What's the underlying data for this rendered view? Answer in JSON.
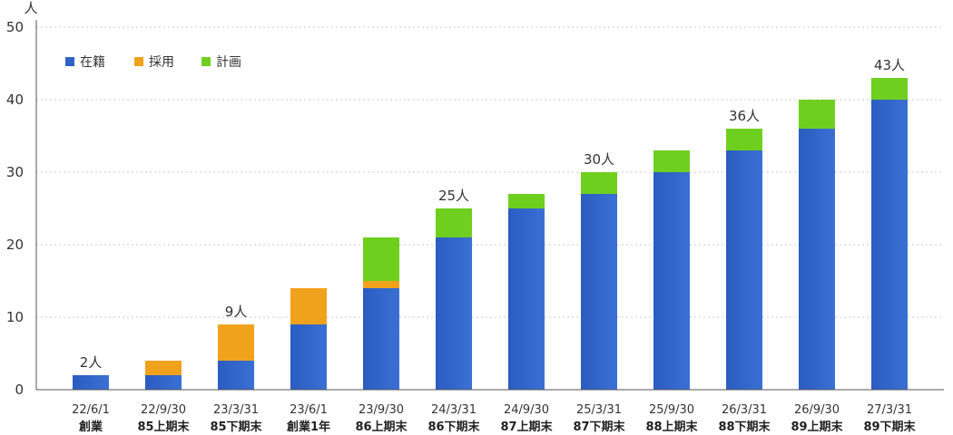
{
  "chart_data": {
    "type": "bar",
    "stacked": true,
    "y_unit": "人",
    "ylim": [
      0,
      50
    ],
    "y_ticks": [
      0,
      10,
      20,
      30,
      40,
      50
    ],
    "grid": true,
    "legend_position": "top-left",
    "categories": [
      {
        "date": "22/6/1",
        "period": "創業"
      },
      {
        "date": "22/9/30",
        "period": "85上期末"
      },
      {
        "date": "23/3/31",
        "period": "85下期末"
      },
      {
        "date": "23/6/1",
        "period": "創業1年"
      },
      {
        "date": "23/9/30",
        "period": "86上期末"
      },
      {
        "date": "24/3/31",
        "period": "86下期末"
      },
      {
        "date": "24/9/30",
        "period": "87上期末"
      },
      {
        "date": "25/3/31",
        "period": "87下期末"
      },
      {
        "date": "25/9/30",
        "period": "88上期末"
      },
      {
        "date": "26/3/31",
        "period": "88下期末"
      },
      {
        "date": "26/9/30",
        "period": "89上期末"
      },
      {
        "date": "27/3/31",
        "period": "89下期末"
      }
    ],
    "series": [
      {
        "name": "在籍",
        "color": "#2e62c4",
        "values": [
          2,
          2,
          4,
          9,
          14,
          21,
          25,
          27,
          30,
          33,
          36,
          40
        ]
      },
      {
        "name": "採用",
        "color": "#f0a21c",
        "values": [
          0,
          2,
          5,
          5,
          1,
          0,
          0,
          0,
          0,
          0,
          0,
          0
        ]
      },
      {
        "name": "計画",
        "color": "#6fcf1e",
        "values": [
          0,
          0,
          0,
          0,
          6,
          4,
          2,
          3,
          3,
          3,
          4,
          3
        ]
      }
    ],
    "total_labels": [
      "2人",
      "",
      "9人",
      "",
      "",
      "25人",
      "",
      "30人",
      "",
      "36人",
      "",
      "43人"
    ]
  }
}
